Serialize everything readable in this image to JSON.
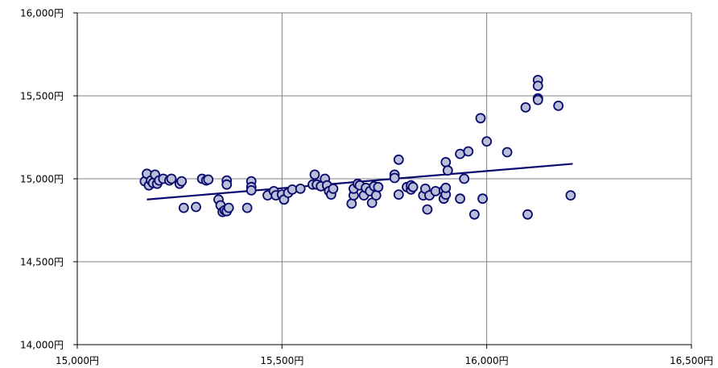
{
  "chart_data": {
    "type": "scatter",
    "title": "",
    "xlabel": "",
    "ylabel": "",
    "xlim": [
      15000,
      16500
    ],
    "ylim": [
      14000,
      16000
    ],
    "grid": true,
    "colors": {
      "point_fill": "#b8bfd6",
      "point_stroke": "#0a0a6e",
      "trend": "#0a0a6e",
      "grid": "#808080",
      "axis": "#000000"
    },
    "x_ticks": [
      15000,
      15500,
      16000,
      16500
    ],
    "x_tick_labels": [
      "15,000円",
      "15,500円",
      "16,000円",
      "16,500円"
    ],
    "y_ticks": [
      14000,
      14500,
      15000,
      15500,
      16000
    ],
    "y_tick_labels": [
      "14,000円",
      "14,500円",
      "15,000円",
      "15,500円",
      "16,000円"
    ],
    "trendline": {
      "x": [
        15170,
        16210
      ],
      "y": [
        14875,
        15090
      ]
    },
    "points": [
      [
        15165,
        14985
      ],
      [
        15170,
        15030
      ],
      [
        15175,
        14960
      ],
      [
        15180,
        14990
      ],
      [
        15185,
        14975
      ],
      [
        15190,
        15025
      ],
      [
        15195,
        14970
      ],
      [
        15200,
        14990
      ],
      [
        15210,
        15000
      ],
      [
        15225,
        14990
      ],
      [
        15230,
        15000
      ],
      [
        15250,
        14970
      ],
      [
        15255,
        14985
      ],
      [
        15260,
        14825
      ],
      [
        15290,
        14830
      ],
      [
        15305,
        15000
      ],
      [
        15315,
        14990
      ],
      [
        15320,
        14995
      ],
      [
        15345,
        14875
      ],
      [
        15350,
        14840
      ],
      [
        15355,
        14800
      ],
      [
        15360,
        14810
      ],
      [
        15365,
        14805
      ],
      [
        15365,
        14990
      ],
      [
        15365,
        14965
      ],
      [
        15370,
        14825
      ],
      [
        15415,
        14825
      ],
      [
        15425,
        14985
      ],
      [
        15425,
        14950
      ],
      [
        15425,
        14930
      ],
      [
        15465,
        14900
      ],
      [
        15480,
        14925
      ],
      [
        15485,
        14900
      ],
      [
        15500,
        14905
      ],
      [
        15505,
        14875
      ],
      [
        15515,
        14915
      ],
      [
        15525,
        14935
      ],
      [
        15545,
        14940
      ],
      [
        15575,
        14965
      ],
      [
        15580,
        15025
      ],
      [
        15585,
        14965
      ],
      [
        15595,
        14955
      ],
      [
        15605,
        15000
      ],
      [
        15610,
        14960
      ],
      [
        15615,
        14925
      ],
      [
        15620,
        14905
      ],
      [
        15625,
        14940
      ],
      [
        15670,
        14850
      ],
      [
        15675,
        14900
      ],
      [
        15675,
        14940
      ],
      [
        15685,
        14970
      ],
      [
        15690,
        14960
      ],
      [
        15700,
        14900
      ],
      [
        15705,
        14945
      ],
      [
        15715,
        14925
      ],
      [
        15720,
        14855
      ],
      [
        15725,
        14955
      ],
      [
        15730,
        14900
      ],
      [
        15735,
        14950
      ],
      [
        15775,
        15025
      ],
      [
        15775,
        15005
      ],
      [
        15785,
        14905
      ],
      [
        15785,
        15115
      ],
      [
        15805,
        14950
      ],
      [
        15815,
        14935
      ],
      [
        15815,
        14960
      ],
      [
        15820,
        14950
      ],
      [
        15845,
        14900
      ],
      [
        15850,
        14940
      ],
      [
        15855,
        14815
      ],
      [
        15860,
        14900
      ],
      [
        15875,
        14925
      ],
      [
        15895,
        14930
      ],
      [
        15895,
        14880
      ],
      [
        15900,
        14905
      ],
      [
        15900,
        14945
      ],
      [
        15900,
        15100
      ],
      [
        15905,
        15050
      ],
      [
        15935,
        15150
      ],
      [
        15935,
        14880
      ],
      [
        15945,
        15000
      ],
      [
        15955,
        15165
      ],
      [
        15970,
        14785
      ],
      [
        15985,
        15365
      ],
      [
        15990,
        14880
      ],
      [
        16000,
        15225
      ],
      [
        16050,
        15160
      ],
      [
        16095,
        15430
      ],
      [
        16100,
        14785
      ],
      [
        16125,
        15595
      ],
      [
        16125,
        15560
      ],
      [
        16125,
        15485
      ],
      [
        16125,
        15475
      ],
      [
        16175,
        15440
      ],
      [
        16205,
        14900
      ]
    ]
  }
}
